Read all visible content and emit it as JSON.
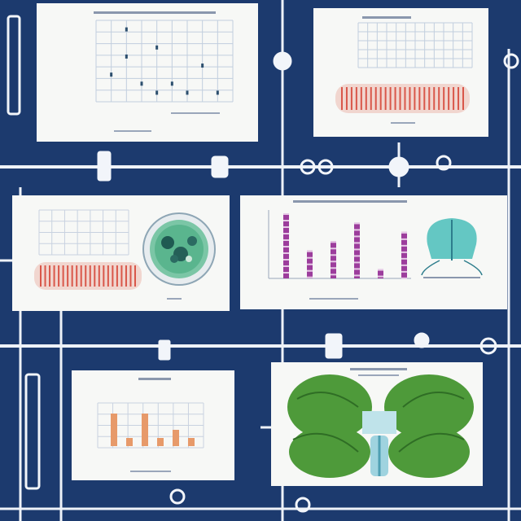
{
  "palette": {
    "background": "#1c3a6e",
    "panel": "#f7f8f6",
    "wire": "#e9eef6",
    "grid": "#b9c6d8",
    "muscle_red": "#d9574a",
    "bar_purple": "#9c3d9c",
    "bar_orange": "#e79a6a",
    "leaf_green": "#4e9a3a",
    "cyan": "#3fb7c7"
  },
  "panels": [
    {
      "id": "scatter-chart-panel"
    },
    {
      "id": "grid-with-muscle-panel"
    },
    {
      "id": "chart-cell-panel"
    },
    {
      "id": "purple-bar-chart-panel"
    },
    {
      "id": "orange-bar-chart-panel"
    },
    {
      "id": "green-organ-panel"
    }
  ],
  "chart_data": [
    {
      "type": "scatter",
      "title": "",
      "xlabel": "",
      "ylabel": "",
      "series": [
        {
          "x": [
            1,
            2,
            2,
            3,
            4,
            4,
            5,
            6,
            7,
            8
          ],
          "y": [
            3,
            8,
            5,
            2,
            6,
            1,
            2,
            1,
            4,
            1
          ]
        }
      ],
      "grid": true
    },
    {
      "type": "bar",
      "title": "",
      "xlabel": "",
      "ylabel": "",
      "categories": [
        "",
        "",
        "",
        "",
        "",
        ""
      ],
      "values": [
        7,
        3,
        4,
        6,
        1,
        5
      ],
      "grid": false
    },
    {
      "type": "bar",
      "title": "",
      "xlabel": "",
      "ylabel": "",
      "categories": [
        "",
        "",
        "",
        "",
        "",
        ""
      ],
      "values": [
        4,
        1,
        4,
        1,
        2,
        1
      ],
      "grid": true
    }
  ]
}
